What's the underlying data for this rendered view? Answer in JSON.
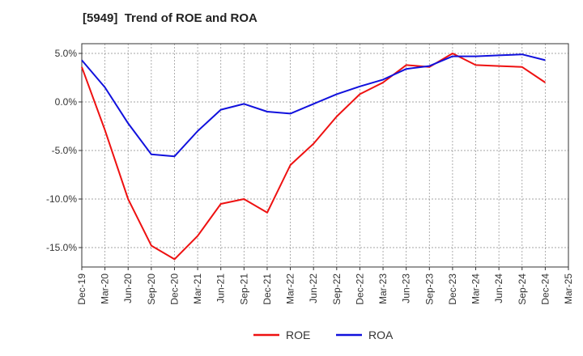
{
  "chart_data": {
    "type": "line",
    "title": "[5949]  Trend of ROE and ROA",
    "xlabel": "",
    "ylabel": "",
    "x": [
      "Dec-19",
      "Mar-20",
      "Jun-20",
      "Sep-20",
      "Dec-20",
      "Mar-21",
      "Jun-21",
      "Sep-21",
      "Dec-21",
      "Mar-22",
      "Jun-22",
      "Sep-22",
      "Dec-22",
      "Mar-23",
      "Jun-23",
      "Sep-23",
      "Dec-23",
      "Mar-24",
      "Jun-24",
      "Sep-24",
      "Dec-24",
      "Mar-25"
    ],
    "ylim": [
      -17,
      6
    ],
    "yticks": [
      5,
      0,
      -5,
      -10,
      -15
    ],
    "ytick_labels": [
      "5.0%",
      "0.0%",
      "-5.0%",
      "-10.0%",
      "-15.0%"
    ],
    "grid": true,
    "legend_position": "bottom-center",
    "series": [
      {
        "name": "ROE",
        "color": "#ee1111",
        "values": [
          3.6,
          -2.9,
          -10.0,
          -14.8,
          -16.2,
          -13.8,
          -10.5,
          -10.0,
          -11.4,
          -6.5,
          -4.3,
          -1.5,
          0.8,
          2.0,
          3.8,
          3.6,
          5.0,
          3.8,
          3.7,
          3.6,
          2.0,
          null
        ]
      },
      {
        "name": "ROA",
        "color": "#1111dd",
        "values": [
          4.3,
          1.5,
          -2.2,
          -5.4,
          -5.6,
          -3.0,
          -0.8,
          -0.2,
          -1.0,
          -1.2,
          -0.2,
          0.8,
          1.6,
          2.3,
          3.4,
          3.7,
          4.7,
          4.7,
          4.8,
          4.9,
          4.3,
          null
        ]
      }
    ]
  }
}
